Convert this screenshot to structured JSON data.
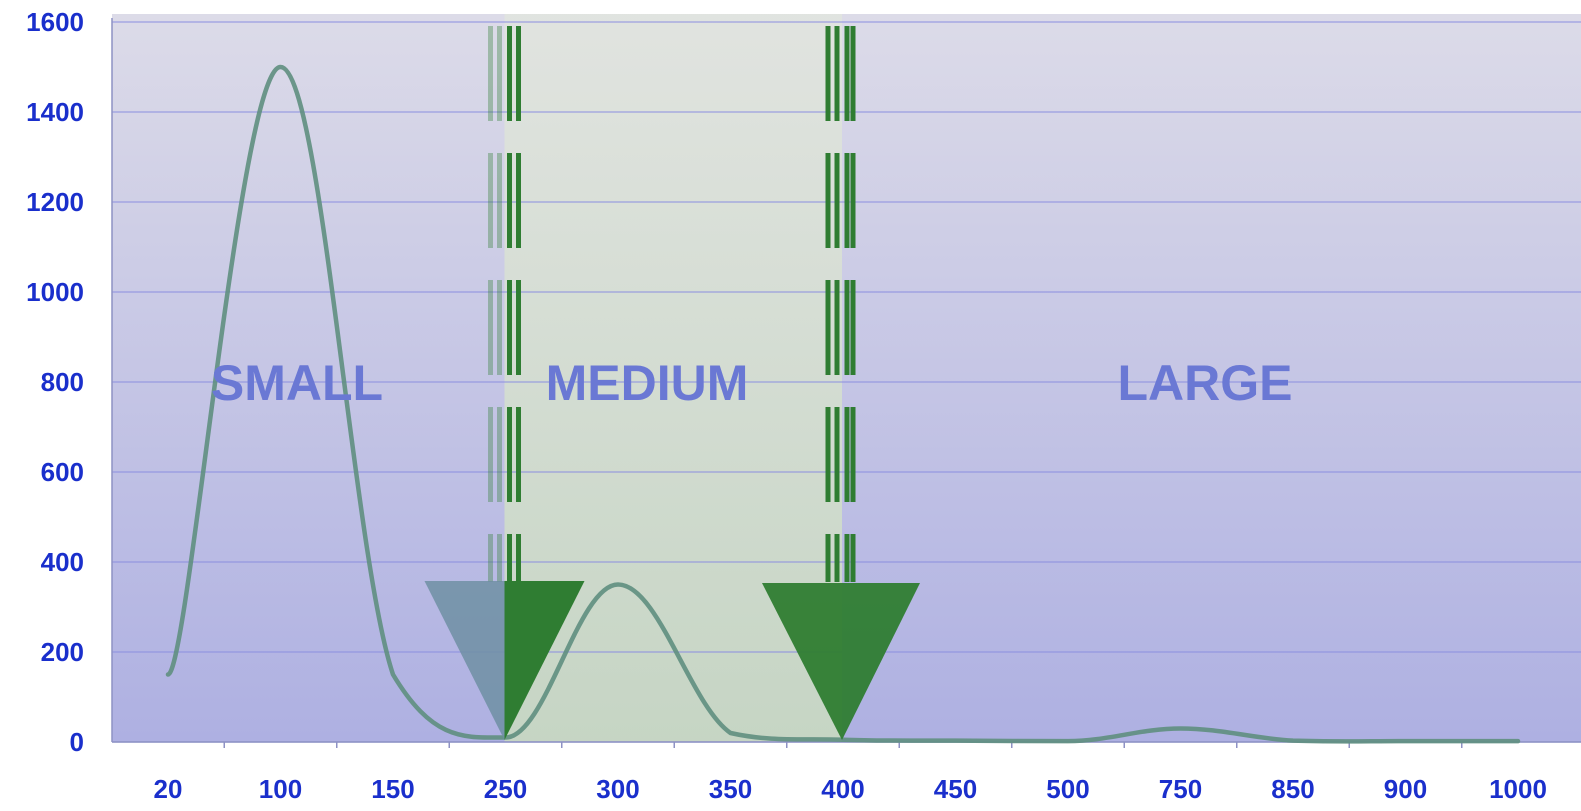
{
  "chart_data": {
    "type": "line",
    "title": "",
    "xlabel": "",
    "ylabel": "",
    "categories": [
      "20",
      "100",
      "150",
      "250",
      "300",
      "350",
      "400",
      "450",
      "500",
      "750",
      "850",
      "900",
      "1000"
    ],
    "ylim": [
      0,
      1600
    ],
    "y_ticks": [
      "0",
      "200",
      "400",
      "600",
      "800",
      "1000",
      "1200",
      "1400",
      "1600"
    ],
    "grid": true,
    "legend": "none",
    "series": [
      {
        "points": [
          {
            "x": "20",
            "y": 150
          },
          {
            "x": "100",
            "y": 1500
          },
          {
            "x": "150",
            "y": 150
          },
          {
            "x": "250",
            "y": 10
          },
          {
            "x": "300",
            "y": 350
          },
          {
            "x": "350",
            "y": 20
          },
          {
            "x": "400",
            "y": 5
          },
          {
            "x": "450",
            "y": 3
          },
          {
            "x": "500",
            "y": 2
          },
          {
            "x": "750",
            "y": 30
          },
          {
            "x": "850",
            "y": 3
          },
          {
            "x": "900",
            "y": 2
          },
          {
            "x": "1000",
            "y": 2
          }
        ]
      }
    ],
    "regions": [
      {
        "label": "SMALL",
        "from": "20",
        "to": "250",
        "color": "#aeb0de"
      },
      {
        "label": "MEDIUM",
        "from": "250",
        "to": "400",
        "color": "#cdd6c9"
      },
      {
        "label": "LARGE",
        "from": "400",
        "to": "1000",
        "color": "#b9bbe1"
      }
    ],
    "boundaries": [
      "250",
      "400"
    ],
    "colors": {
      "tick_text": "#1a2fcc",
      "region_label": "#6a78d4",
      "gridline": "#8c8fe0",
      "curve": "#5f8f7f",
      "boundary_green": "#2f7d32"
    }
  }
}
